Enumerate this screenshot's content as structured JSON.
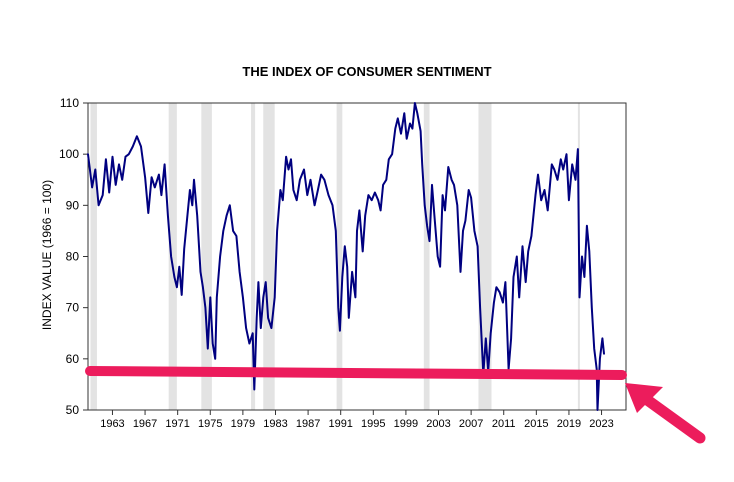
{
  "chart_data": {
    "type": "line",
    "title": "THE INDEX OF CONSUMER SENTIMENT",
    "xlabel": "",
    "ylabel": "INDEX VALUE (1966 = 100)",
    "xlim": [
      1960,
      2026
    ],
    "ylim": [
      50,
      110
    ],
    "yticks": [
      50,
      60,
      70,
      80,
      90,
      100,
      110
    ],
    "xticks": [
      1963,
      1967,
      1971,
      1975,
      1979,
      1983,
      1987,
      1991,
      1995,
      1999,
      2003,
      2007,
      2011,
      2015,
      2019,
      2023
    ],
    "grid": false,
    "recessions": [
      [
        1960.3,
        1961.1
      ],
      [
        1969.9,
        1970.9
      ],
      [
        1973.9,
        1975.2
      ],
      [
        1980.0,
        1980.5
      ],
      [
        1981.5,
        1982.9
      ],
      [
        1990.5,
        1991.2
      ],
      [
        2001.2,
        2001.9
      ],
      [
        2007.9,
        2009.5
      ],
      [
        2020.1,
        2020.3
      ]
    ],
    "series": [
      {
        "color": "#000080",
        "points": [
          [
            1960.0,
            100.0
          ],
          [
            1960.5,
            93.5
          ],
          [
            1960.9,
            97.0
          ],
          [
            1961.3,
            90.0
          ],
          [
            1961.8,
            92.0
          ],
          [
            1962.2,
            99.0
          ],
          [
            1962.6,
            92.5
          ],
          [
            1963.0,
            99.5
          ],
          [
            1963.4,
            94.0
          ],
          [
            1963.8,
            98.0
          ],
          [
            1964.2,
            95.0
          ],
          [
            1964.6,
            99.5
          ],
          [
            1965.0,
            100.0
          ],
          [
            1965.5,
            101.5
          ],
          [
            1966.0,
            103.5
          ],
          [
            1966.5,
            101.5
          ],
          [
            1967.0,
            95.5
          ],
          [
            1967.4,
            88.5
          ],
          [
            1967.8,
            95.5
          ],
          [
            1968.2,
            93.5
          ],
          [
            1968.7,
            96.0
          ],
          [
            1969.0,
            92.0
          ],
          [
            1969.4,
            98.0
          ],
          [
            1969.8,
            88.0
          ],
          [
            1970.2,
            80.0
          ],
          [
            1970.6,
            76.0
          ],
          [
            1970.9,
            74.0
          ],
          [
            1971.2,
            78.0
          ],
          [
            1971.5,
            72.5
          ],
          [
            1971.8,
            81.5
          ],
          [
            1972.2,
            88.0
          ],
          [
            1972.5,
            93.0
          ],
          [
            1972.8,
            90.0
          ],
          [
            1973.0,
            95.0
          ],
          [
            1973.4,
            88.0
          ],
          [
            1973.8,
            77.0
          ],
          [
            1974.1,
            74.0
          ],
          [
            1974.4,
            70.0
          ],
          [
            1974.7,
            62.0
          ],
          [
            1975.0,
            72.0
          ],
          [
            1975.3,
            63.0
          ],
          [
            1975.6,
            60.0
          ],
          [
            1975.8,
            72.0
          ],
          [
            1976.2,
            80.0
          ],
          [
            1976.6,
            85.0
          ],
          [
            1977.0,
            88.0
          ],
          [
            1977.4,
            90.0
          ],
          [
            1977.8,
            85.0
          ],
          [
            1978.2,
            84.0
          ],
          [
            1978.6,
            77.0
          ],
          [
            1979.0,
            72.0
          ],
          [
            1979.4,
            66.0
          ],
          [
            1979.8,
            63.0
          ],
          [
            1980.2,
            65.0
          ],
          [
            1980.4,
            54.0
          ],
          [
            1980.7,
            68.0
          ],
          [
            1980.9,
            75.0
          ],
          [
            1981.2,
            66.0
          ],
          [
            1981.5,
            72.0
          ],
          [
            1981.8,
            75.0
          ],
          [
            1982.1,
            68.0
          ],
          [
            1982.5,
            66.0
          ],
          [
            1982.9,
            72.0
          ],
          [
            1983.2,
            85.0
          ],
          [
            1983.6,
            93.0
          ],
          [
            1983.9,
            91.0
          ],
          [
            1984.3,
            99.5
          ],
          [
            1984.6,
            97.0
          ],
          [
            1984.9,
            99.0
          ],
          [
            1985.2,
            93.0
          ],
          [
            1985.6,
            91.0
          ],
          [
            1986.0,
            95.0
          ],
          [
            1986.5,
            97.0
          ],
          [
            1986.9,
            92.0
          ],
          [
            1987.3,
            95.0
          ],
          [
            1987.8,
            90.0
          ],
          [
            1988.2,
            93.0
          ],
          [
            1988.6,
            96.0
          ],
          [
            1989.0,
            95.0
          ],
          [
            1989.5,
            92.0
          ],
          [
            1990.0,
            90.0
          ],
          [
            1990.4,
            85.0
          ],
          [
            1990.7,
            70.0
          ],
          [
            1990.9,
            65.5
          ],
          [
            1991.2,
            76.0
          ],
          [
            1991.5,
            82.0
          ],
          [
            1991.8,
            78.0
          ],
          [
            1992.0,
            68.0
          ],
          [
            1992.4,
            77.0
          ],
          [
            1992.8,
            72.0
          ],
          [
            1993.0,
            85.0
          ],
          [
            1993.3,
            89.0
          ],
          [
            1993.7,
            81.0
          ],
          [
            1994.0,
            88.0
          ],
          [
            1994.4,
            92.0
          ],
          [
            1994.8,
            91.0
          ],
          [
            1995.2,
            92.5
          ],
          [
            1995.6,
            91.0
          ],
          [
            1995.9,
            89.0
          ],
          [
            1996.2,
            94.0
          ],
          [
            1996.6,
            95.0
          ],
          [
            1996.9,
            99.0
          ],
          [
            1997.3,
            100.0
          ],
          [
            1997.7,
            105.0
          ],
          [
            1998.0,
            107.0
          ],
          [
            1998.4,
            104.0
          ],
          [
            1998.8,
            108.0
          ],
          [
            1999.1,
            103.0
          ],
          [
            1999.5,
            106.0
          ],
          [
            1999.8,
            105.0
          ],
          [
            2000.1,
            110.0
          ],
          [
            2000.4,
            108.0
          ],
          [
            2000.8,
            104.5
          ],
          [
            2001.0,
            98.0
          ],
          [
            2001.3,
            90.0
          ],
          [
            2001.6,
            86.0
          ],
          [
            2001.9,
            83.0
          ],
          [
            2002.2,
            94.0
          ],
          [
            2002.5,
            88.0
          ],
          [
            2002.9,
            80.0
          ],
          [
            2003.2,
            78.0
          ],
          [
            2003.5,
            92.0
          ],
          [
            2003.8,
            89.0
          ],
          [
            2004.2,
            97.5
          ],
          [
            2004.6,
            95.0
          ],
          [
            2004.9,
            94.0
          ],
          [
            2005.3,
            90.0
          ],
          [
            2005.7,
            77.0
          ],
          [
            2006.0,
            85.0
          ],
          [
            2006.3,
            87.0
          ],
          [
            2006.7,
            93.0
          ],
          [
            2007.0,
            91.5
          ],
          [
            2007.4,
            85.0
          ],
          [
            2007.8,
            82.0
          ],
          [
            2008.1,
            70.0
          ],
          [
            2008.5,
            57.0
          ],
          [
            2008.8,
            64.0
          ],
          [
            2009.1,
            57.5
          ],
          [
            2009.4,
            65.0
          ],
          [
            2009.8,
            71.0
          ],
          [
            2010.1,
            74.0
          ],
          [
            2010.5,
            73.0
          ],
          [
            2010.9,
            71.0
          ],
          [
            2011.2,
            75.0
          ],
          [
            2011.6,
            58.0
          ],
          [
            2011.9,
            64.0
          ],
          [
            2012.2,
            76.0
          ],
          [
            2012.6,
            80.0
          ],
          [
            2012.9,
            72.0
          ],
          [
            2013.3,
            82.0
          ],
          [
            2013.7,
            75.0
          ],
          [
            2014.0,
            81.0
          ],
          [
            2014.4,
            84.0
          ],
          [
            2014.9,
            92.0
          ],
          [
            2015.2,
            96.0
          ],
          [
            2015.6,
            91.0
          ],
          [
            2016.0,
            93.0
          ],
          [
            2016.4,
            89.0
          ],
          [
            2016.9,
            98.0
          ],
          [
            2017.2,
            97.0
          ],
          [
            2017.6,
            95.0
          ],
          [
            2018.0,
            99.0
          ],
          [
            2018.3,
            97.0
          ],
          [
            2018.7,
            100.0
          ],
          [
            2019.0,
            91.0
          ],
          [
            2019.4,
            98.0
          ],
          [
            2019.8,
            95.0
          ],
          [
            2020.1,
            101.0
          ],
          [
            2020.3,
            72.0
          ],
          [
            2020.6,
            80.0
          ],
          [
            2020.9,
            76.0
          ],
          [
            2021.2,
            86.0
          ],
          [
            2021.5,
            81.0
          ],
          [
            2021.8,
            70.0
          ],
          [
            2022.1,
            62.0
          ],
          [
            2022.4,
            58.0
          ],
          [
            2022.5,
            50.0
          ],
          [
            2022.8,
            60.0
          ],
          [
            2023.1,
            64.0
          ],
          [
            2023.3,
            61.0
          ]
        ]
      }
    ]
  }
}
